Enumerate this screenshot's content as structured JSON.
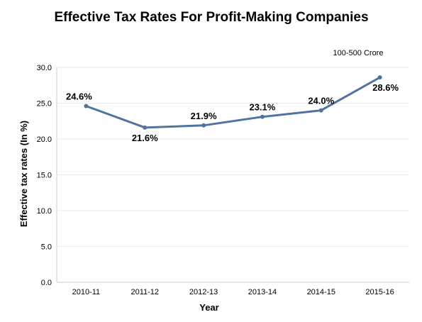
{
  "chart_data": {
    "type": "line",
    "title": "Effective Tax Rates For Profit-Making Companies",
    "xlabel": "Year",
    "ylabel": "Effective tax rates (In %)",
    "categories": [
      "2010-11",
      "2011-12",
      "2012-13",
      "2013-14",
      "2014-15",
      "2015-16"
    ],
    "series": [
      {
        "name": "100-500 Crore",
        "values": [
          24.6,
          21.6,
          21.9,
          23.1,
          24.0,
          28.6
        ],
        "labels": [
          "24.6%",
          "21.6%",
          "21.9%",
          "23.1%",
          "24.0%",
          "28.6%"
        ],
        "color": "#4f74a0"
      }
    ],
    "ylim": [
      0,
      30
    ],
    "yticks": [
      "0.0",
      "5.0",
      "10.0",
      "15.0",
      "20.0",
      "25.0",
      "30.0"
    ],
    "grid": true,
    "legend_position": "top-right",
    "colors": {
      "gridline": "#e8e8e8",
      "axis": "#cccccc",
      "text": "#000000"
    }
  }
}
